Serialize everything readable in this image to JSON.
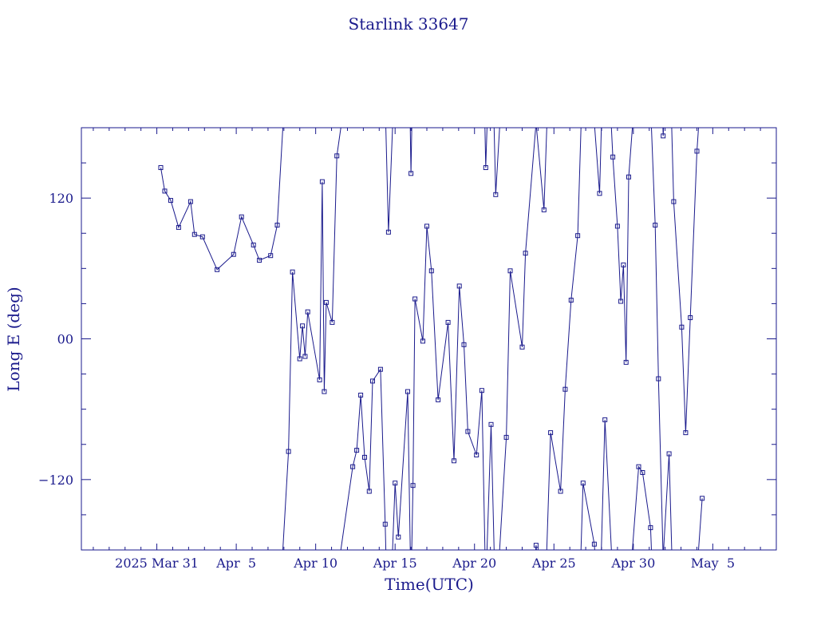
{
  "chart_data": {
    "type": "line",
    "title": "Starlink 33647",
    "xlabel": "Time(UTC)",
    "ylabel": "Long E (deg)",
    "x_range": [
      "2025-03-26T06:00:00",
      "2025-05-09T00:00:00"
    ],
    "ylim": [
      -180,
      180
    ],
    "x_tick_labels": [
      {
        "date": "2025-03-31",
        "label": "2025 Mar 31"
      },
      {
        "date": "2025-04-05",
        "label": "Apr  5"
      },
      {
        "date": "2025-04-10",
        "label": "Apr 10"
      },
      {
        "date": "2025-04-15",
        "label": "Apr 15"
      },
      {
        "date": "2025-04-20",
        "label": "Apr 20"
      },
      {
        "date": "2025-04-25",
        "label": "Apr 25"
      },
      {
        "date": "2025-04-30",
        "label": "Apr 30"
      },
      {
        "date": "2025-05-05",
        "label": "May  5"
      }
    ],
    "y_tick_labels": [
      {
        "value": 120,
        "label": "120"
      },
      {
        "value": 0,
        "label": "00"
      },
      {
        "value": -120,
        "label": "−120"
      }
    ],
    "grid": false,
    "series": [
      {
        "color": "#1a1a8c",
        "marker": "square",
        "points": [
          [
            "2025-03-31T06:00",
            146
          ],
          [
            "2025-03-31T12:00",
            126
          ],
          [
            "2025-03-31T21:00",
            118
          ],
          [
            "2025-04-01T09:00",
            95
          ],
          [
            "2025-04-02T03:00",
            117
          ],
          [
            "2025-04-02T09:00",
            89
          ],
          [
            "2025-04-02T21:00",
            87
          ],
          [
            "2025-04-03T19:00",
            59
          ],
          [
            "2025-04-04T20:00",
            72
          ],
          [
            "2025-04-05T08:00",
            104
          ],
          [
            "2025-04-06T02:00",
            80
          ],
          [
            "2025-04-06T11:00",
            67
          ],
          [
            "2025-04-07T04:00",
            71
          ],
          [
            "2025-04-07T14:00",
            97
          ],
          [
            "2025-04-08T07:00",
            -96
          ],
          [
            "2025-04-08T13:00",
            57
          ],
          [
            "2025-04-09T00:00",
            -17
          ],
          [
            "2025-04-09T04:00",
            11
          ],
          [
            "2025-04-09T08:00",
            -15
          ],
          [
            "2025-04-09T12:00",
            23
          ],
          [
            "2025-04-10T06:00",
            -35
          ],
          [
            "2025-04-10T10:00",
            134
          ],
          [
            "2025-04-10T13:00",
            -45
          ],
          [
            "2025-04-10T16:00",
            31
          ],
          [
            "2025-04-11T01:00",
            14
          ],
          [
            "2025-04-11T08:00",
            156
          ],
          [
            "2025-04-12T08:00",
            -109
          ],
          [
            "2025-04-12T14:00",
            -95
          ],
          [
            "2025-04-12T20:00",
            -48
          ],
          [
            "2025-04-13T02:00",
            -101
          ],
          [
            "2025-04-13T09:00",
            -130
          ],
          [
            "2025-04-13T14:00",
            -36
          ],
          [
            "2025-04-14T02:00",
            -26
          ],
          [
            "2025-04-14T09:00",
            -158
          ],
          [
            "2025-04-14T14:00",
            91
          ],
          [
            "2025-04-15T00:00",
            -123
          ],
          [
            "2025-04-15T05:00",
            -169
          ],
          [
            "2025-04-15T19:00",
            -45
          ],
          [
            "2025-04-16T00:00",
            141
          ],
          [
            "2025-04-16T03:00",
            -125
          ],
          [
            "2025-04-16T06:00",
            34
          ],
          [
            "2025-04-16T18:00",
            -2
          ],
          [
            "2025-04-17T00:00",
            96
          ],
          [
            "2025-04-17T07:00",
            58
          ],
          [
            "2025-04-17T17:00",
            -52
          ],
          [
            "2025-04-18T08:00",
            14
          ],
          [
            "2025-04-18T17:00",
            -104
          ],
          [
            "2025-04-19T01:00",
            45
          ],
          [
            "2025-04-19T08:00",
            -5
          ],
          [
            "2025-04-19T14:00",
            -79
          ],
          [
            "2025-04-20T03:00",
            -99
          ],
          [
            "2025-04-20T11:00",
            -44
          ],
          [
            "2025-04-20T17:00",
            146
          ],
          [
            "2025-04-21T01:00",
            -73
          ],
          [
            "2025-04-21T08:00",
            123
          ],
          [
            "2025-04-22T00:00",
            -84
          ],
          [
            "2025-04-22T06:00",
            58
          ],
          [
            "2025-04-23T00:00",
            -7
          ],
          [
            "2025-04-23T05:00",
            73
          ],
          [
            "2025-04-23T21:00",
            -176
          ],
          [
            "2025-04-24T09:00",
            110
          ],
          [
            "2025-04-24T19:00",
            -80
          ],
          [
            "2025-04-25T10:00",
            -130
          ],
          [
            "2025-04-25T17:00",
            -43
          ],
          [
            "2025-04-26T02:00",
            33
          ],
          [
            "2025-04-26T12:00",
            88
          ],
          [
            "2025-04-26T20:00",
            -123
          ],
          [
            "2025-04-27T13:00",
            -175
          ],
          [
            "2025-04-27T21:00",
            124
          ],
          [
            "2025-04-28T05:00",
            -69
          ],
          [
            "2025-04-28T17:00",
            155
          ],
          [
            "2025-04-29T00:00",
            96
          ],
          [
            "2025-04-29T05:00",
            32
          ],
          [
            "2025-04-29T09:00",
            63
          ],
          [
            "2025-04-29T13:00",
            -20
          ],
          [
            "2025-04-29T17:00",
            138
          ],
          [
            "2025-04-30T08:00",
            -109
          ],
          [
            "2025-04-30T14:00",
            -114
          ],
          [
            "2025-05-01T02:00",
            -161
          ],
          [
            "2025-05-01T09:00",
            97
          ],
          [
            "2025-05-01T14:00",
            -34
          ],
          [
            "2025-05-01T21:00",
            173
          ],
          [
            "2025-05-02T06:00",
            -98
          ],
          [
            "2025-05-02T13:00",
            117
          ],
          [
            "2025-05-03T01:00",
            10
          ],
          [
            "2025-05-03T07:00",
            -80
          ],
          [
            "2025-05-03T14:00",
            18
          ],
          [
            "2025-05-04T00:00",
            160
          ],
          [
            "2025-05-04T08:00",
            -136
          ]
        ]
      }
    ]
  }
}
